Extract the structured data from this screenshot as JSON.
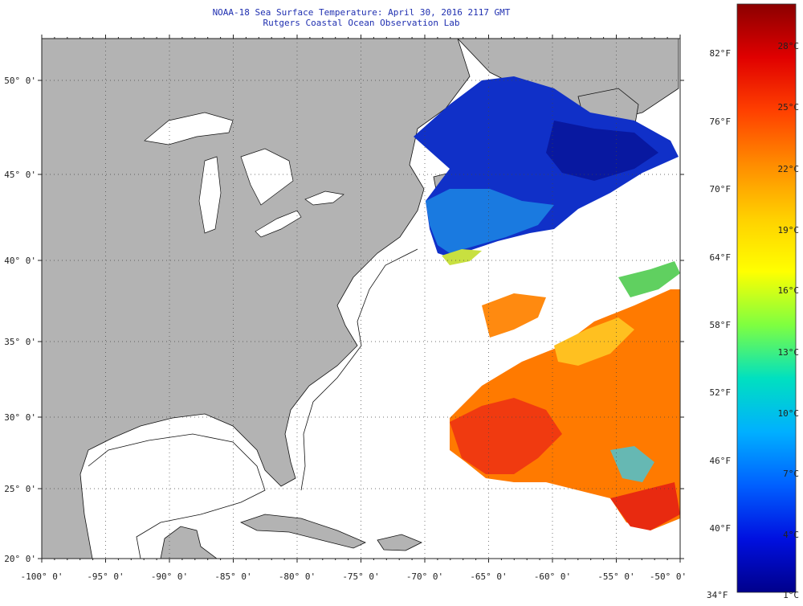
{
  "title": "NOAA-18 Sea Surface Temperature:  April 30, 2016 2117 GMT",
  "subtitle": "Rutgers Coastal Ocean Observation Lab",
  "map": {
    "lon_range": [
      -100,
      -50
    ],
    "lat_range": [
      20,
      52
    ],
    "lon_ticks": [
      "-100° 0'",
      "-95° 0'",
      "-90° 0'",
      "-85° 0'",
      "-80° 0'",
      "-75° 0'",
      "-70° 0'",
      "-65° 0'",
      "-60° 0'",
      "-55° 0'",
      "-50° 0'"
    ],
    "lat_ticks": [
      "20° 0'",
      "25° 0'",
      "30° 0'",
      "35° 0'",
      "40° 0'",
      "45° 0'",
      "50° 0'"
    ],
    "land_color": "#b3b3b3",
    "water_color": "#ffffff"
  },
  "colorbar": {
    "min_label_f": "34°F",
    "f_labels": [
      "82°F",
      "76°F",
      "70°F",
      "64°F",
      "58°F",
      "52°F",
      "46°F",
      "40°F"
    ],
    "c_labels": [
      "28°C",
      "25°C",
      "22°C",
      "19°C",
      "16°C",
      "13°C",
      "10°C",
      "7°C",
      "4°C",
      "1°C"
    ],
    "colors": [
      "#8b0000",
      "#e00000",
      "#ff4000",
      "#ff8c00",
      "#ffd000",
      "#ffff00",
      "#7fff40",
      "#00e0c0",
      "#00b0ff",
      "#0060ff",
      "#0010e0",
      "#00008b"
    ]
  }
}
